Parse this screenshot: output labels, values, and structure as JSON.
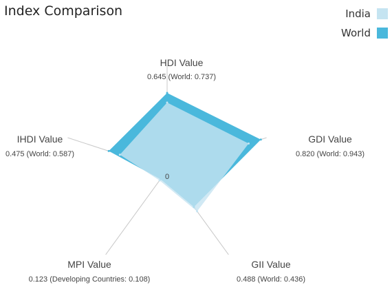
{
  "chart_data": {
    "type": "radar",
    "title": "Index Comparison",
    "axes": [
      {
        "name": "HDI Value",
        "label": "0.645 (World: 0.737)"
      },
      {
        "name": "GDI Value",
        "label": "0.820 (World: 0.943)"
      },
      {
        "name": "GII Value",
        "label": "0.488 (World: 0.436)"
      },
      {
        "name": "MPI Value",
        "label": "0.123 (Developing Countries: 0.108)"
      },
      {
        "name": "IHDI Value",
        "label": "0.475 (World: 0.587)"
      }
    ],
    "series": [
      {
        "name": "World",
        "color": "#4ab8dc",
        "values": [
          0.737,
          0.943,
          0.436,
          0.108,
          0.587
        ]
      },
      {
        "name": "India",
        "color": "#c5e4f1",
        "values": [
          0.645,
          0.82,
          0.488,
          0.123,
          0.475
        ]
      }
    ],
    "range": [
      0,
      1
    ],
    "center_label": "0",
    "legend_position": "top-right"
  }
}
